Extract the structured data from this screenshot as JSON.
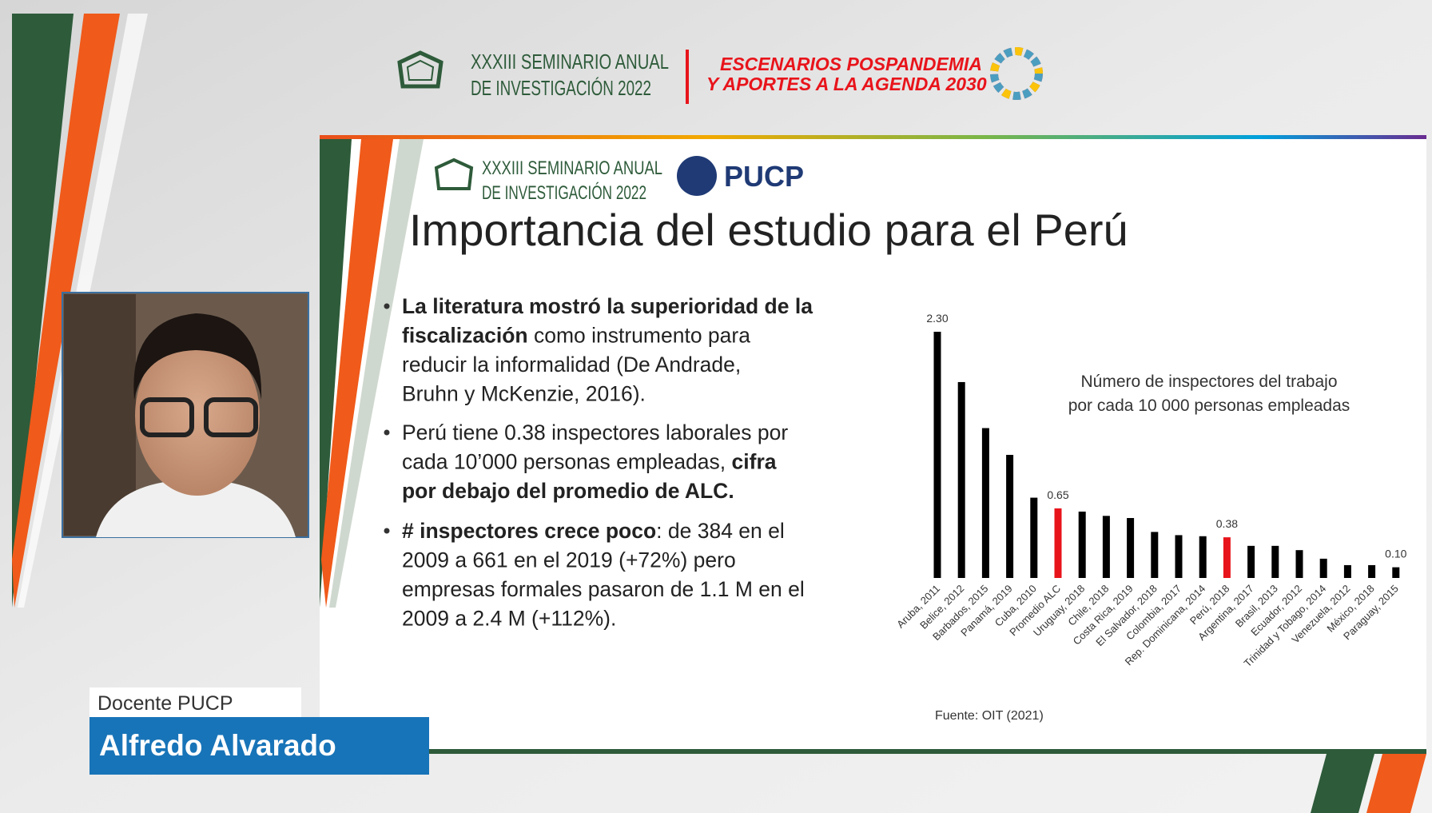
{
  "header": {
    "seminar": [
      "XXXIII SEMINARIO ANUAL",
      "DE INVESTIGACIÓN 2022"
    ],
    "theme": [
      "ESCENARIOS POSPANDEMIA",
      "Y APORTES A LA AGENDA 2030"
    ]
  },
  "slide": {
    "seminar": [
      "XXXIII SEMINARIO ANUAL",
      "DE INVESTIGACIÓN 2022"
    ],
    "brand": "PUCP",
    "title": "Importancia del estudio para el Perú",
    "bullets": [
      [
        [
          {
            "text": "La literatura mostró la superioridad de la",
            "bold": true
          }
        ],
        [
          {
            "text": "fiscalización",
            "bold": true
          },
          {
            "text": " como instrumento para",
            "bold": false
          }
        ],
        [
          {
            "text": "reducir la informalidad (De Andrade,",
            "bold": false
          }
        ],
        [
          {
            "text": "Bruhn y McKenzie, 2016).",
            "bold": false
          }
        ]
      ],
      [
        [
          {
            "text": "Perú tiene 0.38 inspectores laborales por",
            "bold": false
          }
        ],
        [
          {
            "text": "cada 10’000 personas empleadas, ",
            "bold": false
          },
          {
            "text": "cifra",
            "bold": true
          }
        ],
        [
          {
            "text": "por debajo del promedio de ALC.",
            "bold": true
          }
        ]
      ],
      [
        [
          {
            "text": "# inspectores crece poco",
            "bold": true
          },
          {
            "text": ": de 384 en el",
            "bold": false
          }
        ],
        [
          {
            "text": "2009 a 661 en el 2019 (+72%) pero",
            "bold": false
          }
        ],
        [
          {
            "text": "empresas formales pasaron de 1.1 M en el",
            "bold": false
          }
        ],
        [
          {
            "text": "2009 a 2.4 M (+112%).",
            "bold": false
          }
        ]
      ]
    ]
  },
  "chart_data": {
    "type": "bar",
    "title": [
      "Número de inspectores del trabajo",
      "por cada 10 000 personas empleadas"
    ],
    "source": "Fuente: OIT (2021)",
    "categories": [
      "Aruba, 2011",
      "Belice, 2012",
      "Barbados, 2015",
      "Panamá, 2019",
      "Cuba, 2010",
      "Promedio ALC",
      "Uruguay, 2018",
      "Chile, 2018",
      "Costa Rica, 2019",
      "El Salvador, 2018",
      "Colombia, 2017",
      "Rep. Dominicana, 2014",
      "Perú, 2018",
      "Argentina, 2017",
      "Brasil, 2013",
      "Ecuador, 2012",
      "Trinidad y Tobago, 2014",
      "Venezuela, 2012",
      "México, 2018",
      "Paraguay, 2015"
    ],
    "values": [
      2.3,
      1.83,
      1.4,
      1.15,
      0.75,
      0.65,
      0.62,
      0.58,
      0.56,
      0.43,
      0.4,
      0.39,
      0.38,
      0.3,
      0.3,
      0.26,
      0.18,
      0.12,
      0.12,
      0.1
    ],
    "value_labels": [
      "2.30",
      null,
      null,
      null,
      null,
      "0.65",
      null,
      null,
      null,
      null,
      null,
      null,
      "0.38",
      null,
      null,
      null,
      null,
      null,
      null,
      "0.10"
    ],
    "colors": [
      "#000000",
      "#000000",
      "#000000",
      "#000000",
      "#000000",
      "#e8141b",
      "#000000",
      "#000000",
      "#000000",
      "#000000",
      "#000000",
      "#000000",
      "#e8141b",
      "#000000",
      "#000000",
      "#000000",
      "#000000",
      "#000000",
      "#000000",
      "#000000"
    ]
  },
  "speaker": {
    "role": "Docente PUCP",
    "name": "Alfredo Alvarado"
  }
}
